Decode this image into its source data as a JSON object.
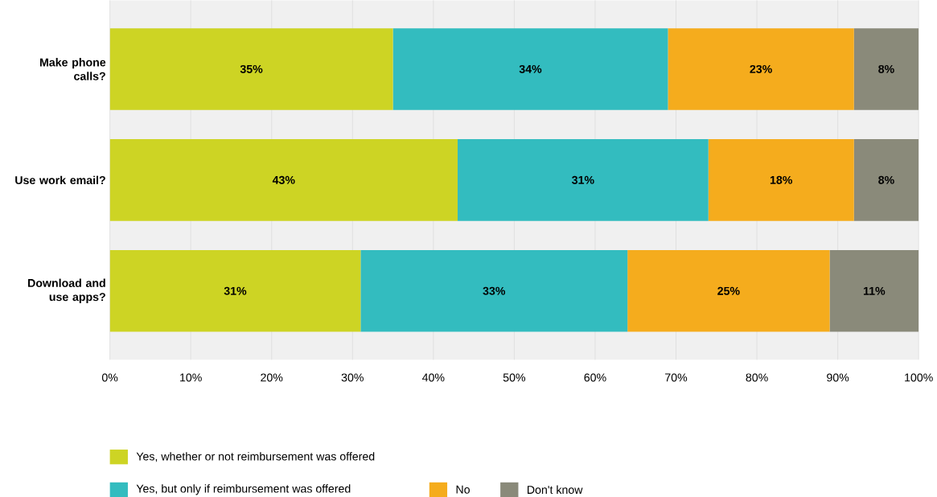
{
  "chart_data": {
    "type": "bar",
    "orientation": "horizontal",
    "stacked": true,
    "categories": [
      "Make phone calls?",
      "Use work email?",
      "Download and use apps?"
    ],
    "series": [
      {
        "name": "Yes, whether or not reimbursement was offered",
        "color": "#cdd424",
        "values": [
          35,
          43,
          31
        ],
        "value_labels": [
          "35%",
          "43%",
          "31%"
        ]
      },
      {
        "name": "Yes, but only if reimbursement was offered",
        "color": "#33bcbf",
        "values": [
          34,
          31,
          33
        ],
        "value_labels": [
          "34%",
          "31%",
          "33%"
        ]
      },
      {
        "name": "No",
        "color": "#f5ac1d",
        "values": [
          23,
          18,
          25
        ],
        "value_labels": [
          "23%",
          "18%",
          "25%"
        ]
      },
      {
        "name": "Don't know",
        "color": "#8a8a7a",
        "values": [
          8,
          8,
          11
        ],
        "value_labels": [
          "8%",
          "8%",
          "11%"
        ]
      }
    ],
    "xlim": [
      0,
      100
    ],
    "xticks": [
      {
        "value": 0,
        "label": "0%"
      },
      {
        "value": 10,
        "label": "10%"
      },
      {
        "value": 20,
        "label": "20%"
      },
      {
        "value": 30,
        "label": "30%"
      },
      {
        "value": 40,
        "label": "40%"
      },
      {
        "value": 50,
        "label": "50%"
      },
      {
        "value": 60,
        "label": "60%"
      },
      {
        "value": 70,
        "label": "70%"
      },
      {
        "value": 80,
        "label": "80%"
      },
      {
        "value": 90,
        "label": "90%"
      },
      {
        "value": 100,
        "label": "100%"
      }
    ],
    "grid": "x",
    "legend": "bottom"
  }
}
